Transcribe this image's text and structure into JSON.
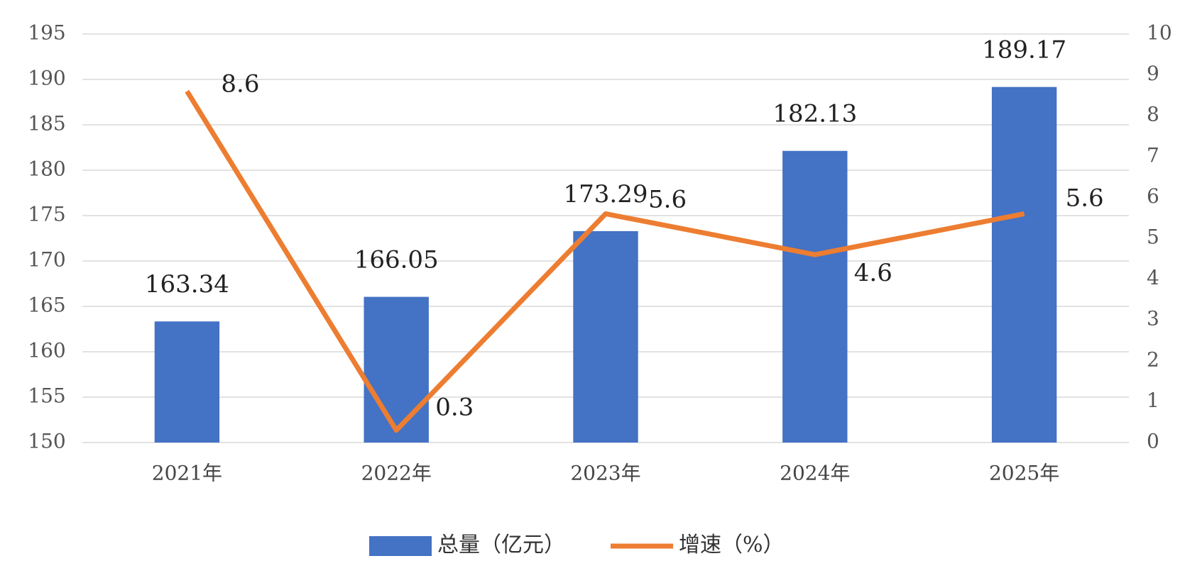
{
  "chart_data": {
    "type": "combo",
    "categories": [
      "2021年",
      "2022年",
      "2023年",
      "2024年",
      "2025年"
    ],
    "series": [
      {
        "name": "总量（亿元）",
        "type": "bar",
        "color": "#4472c4",
        "values": [
          163.34,
          166.05,
          173.29,
          182.13,
          189.17
        ]
      },
      {
        "name": "增速（%）",
        "type": "line",
        "axis": "y2",
        "color": "#ed7d31",
        "values": [
          8.6,
          0.3,
          5.6,
          4.6,
          5.6
        ]
      }
    ],
    "ylim": [
      150,
      195
    ],
    "yticks": [
      150,
      155,
      160,
      165,
      170,
      175,
      180,
      185,
      190,
      195
    ],
    "y2lim": [
      0,
      10
    ],
    "y2ticks": [
      0,
      1,
      2,
      3,
      4,
      5,
      6,
      7,
      8,
      9,
      10
    ],
    "grid": true,
    "legend": "bottom"
  }
}
